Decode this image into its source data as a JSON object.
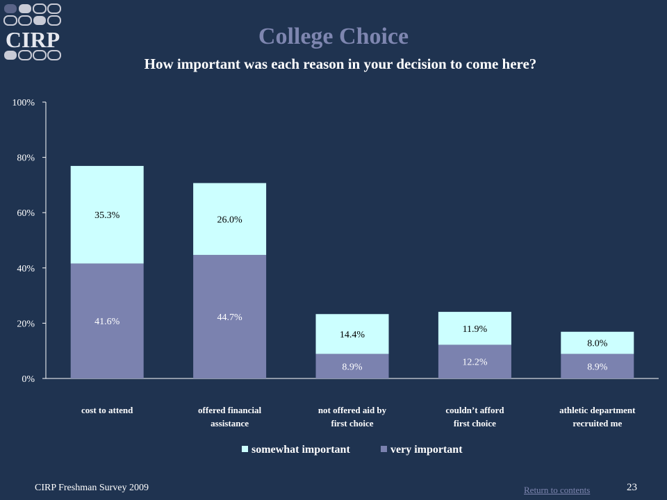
{
  "slide": {
    "logo_text": "CIRP",
    "title": "College Choice",
    "footer_left": "CIRP Freshman Survey 2009",
    "footer_link": "Return to contents",
    "page_number": "23"
  },
  "colors": {
    "background": "#1f3350",
    "title": "#7e86b0",
    "somewhat_important": "#ccffff",
    "very_important": "#7b82af"
  },
  "chart_data": {
    "type": "bar",
    "stacked": true,
    "title": "How important was each reason in your decision to come here?",
    "categories": [
      [
        "cost to attend"
      ],
      [
        "offered financial",
        "assistance"
      ],
      [
        "not offered aid by",
        "first choice"
      ],
      [
        "couldn’t afford",
        "first choice"
      ],
      [
        "athletic department",
        "recruited me"
      ]
    ],
    "series": [
      {
        "name": "very important",
        "values": [
          41.6,
          44.7,
          8.9,
          12.2,
          8.9
        ],
        "labels": [
          "41.6%",
          "44.7%",
          "8.9%",
          "12.2%",
          "8.9%"
        ]
      },
      {
        "name": "somewhat important",
        "values": [
          35.3,
          26.0,
          14.4,
          11.9,
          8.0
        ],
        "labels": [
          "35.3%",
          "26.0%",
          "14.4%",
          "11.9%",
          "8.0%"
        ]
      }
    ],
    "legend_order": [
      "somewhat important",
      "very important"
    ],
    "ylim": [
      0,
      100
    ],
    "yticks": [
      "0%",
      "20%",
      "40%",
      "60%",
      "80%",
      "100%"
    ],
    "legend_position": "bottom",
    "grid": false
  }
}
